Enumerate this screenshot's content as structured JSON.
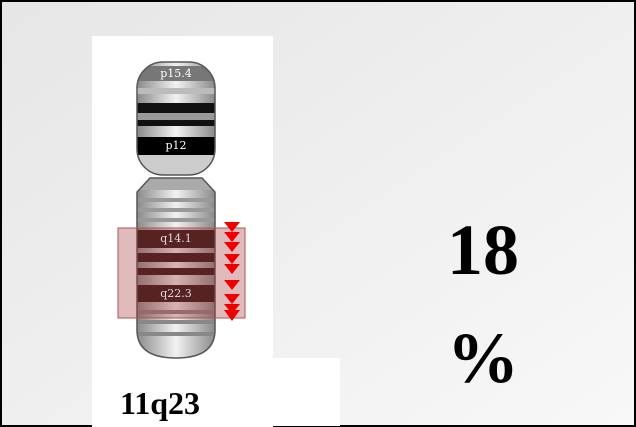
{
  "ideogram": {
    "bands": [
      "p15.4",
      "p12",
      "q14.1",
      "q22.3"
    ],
    "caption": "11q23"
  },
  "percentage": {
    "lines": [
      "18",
      "%"
    ]
  }
}
